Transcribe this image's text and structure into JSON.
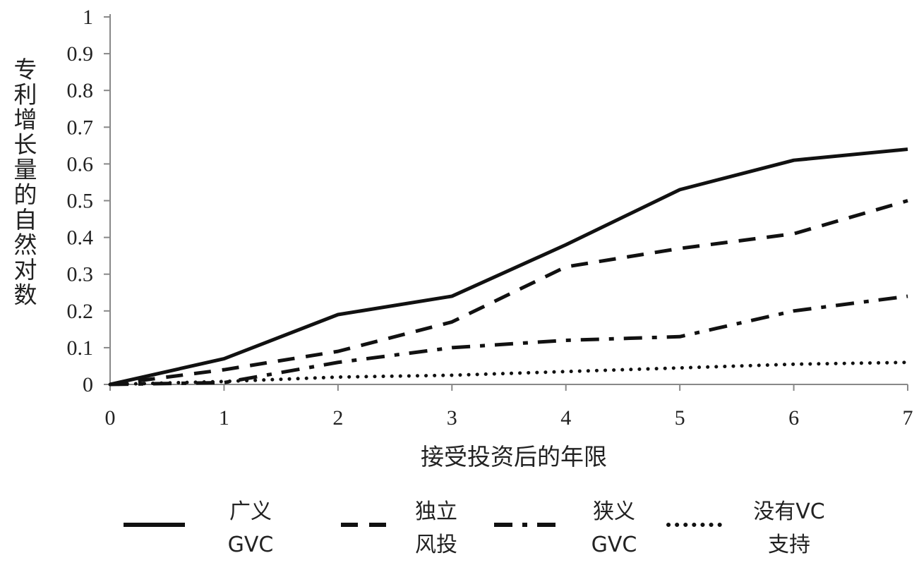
{
  "chart_data": {
    "type": "line",
    "title": "",
    "xlabel": "接受投资后的年限",
    "ylabel": "专利增长量的自然对数",
    "x": [
      0,
      1,
      2,
      3,
      4,
      5,
      6,
      7
    ],
    "xlim": [
      0,
      7
    ],
    "ylim": [
      0,
      1
    ],
    "x_ticks": [
      "0",
      "1",
      "2",
      "3",
      "4",
      "5",
      "6",
      "7"
    ],
    "y_ticks": [
      "0",
      "0.1",
      "0.2",
      "0.3",
      "0.4",
      "0.5",
      "0.6",
      "0.7",
      "0.8",
      "0.9",
      "1"
    ],
    "grid": false,
    "legend_position": "bottom",
    "series": [
      {
        "name": "广义GVC",
        "label_lines": [
          "广义",
          "GVC"
        ],
        "style": "solid",
        "values": [
          0,
          0.07,
          0.19,
          0.24,
          0.38,
          0.53,
          0.61,
          0.64
        ]
      },
      {
        "name": "独立风投",
        "label_lines": [
          "独立",
          "风投"
        ],
        "style": "dashed",
        "values": [
          0,
          0.04,
          0.09,
          0.17,
          0.32,
          0.37,
          0.41,
          0.5
        ]
      },
      {
        "name": "狭义GVC",
        "label_lines": [
          "狭义",
          "GVC"
        ],
        "style": "dashdot",
        "values": [
          0,
          0.005,
          0.06,
          0.1,
          0.12,
          0.13,
          0.2,
          0.24
        ]
      },
      {
        "name": "没有VC支持",
        "label_lines": [
          "没有VC",
          "支持"
        ],
        "style": "dotted",
        "values": [
          0,
          0.008,
          0.02,
          0.025,
          0.035,
          0.045,
          0.055,
          0.06
        ]
      }
    ]
  }
}
